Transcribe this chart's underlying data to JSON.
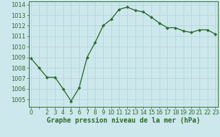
{
  "x": [
    0,
    1,
    2,
    3,
    4,
    5,
    6,
    7,
    8,
    9,
    10,
    11,
    12,
    13,
    14,
    15,
    16,
    17,
    18,
    19,
    20,
    21,
    22,
    23
  ],
  "y": [
    1008.9,
    1008.0,
    1007.1,
    1007.1,
    1006.0,
    1004.85,
    1006.1,
    1009.0,
    1010.4,
    1012.0,
    1012.6,
    1013.55,
    1013.75,
    1013.45,
    1013.3,
    1012.8,
    1012.25,
    1011.8,
    1011.8,
    1011.5,
    1011.35,
    1011.6,
    1011.6,
    1011.2
  ],
  "line_color": "#2d6a2d",
  "marker": "D",
  "marker_size": 2.2,
  "line_width": 1.0,
  "bg_color": "#cce8ec",
  "grid_color": "#b8d8dc",
  "xlabel": "Graphe pression niveau de la mer (hPa)",
  "xlabel_color": "#2d6a2d",
  "xlabel_fontsize": 7.0,
  "tick_color": "#2d6a2d",
  "tick_fontsize": 6.0,
  "ylim": [
    1004.3,
    1014.3
  ],
  "yticks": [
    1005,
    1006,
    1007,
    1008,
    1009,
    1010,
    1011,
    1012,
    1013,
    1014
  ],
  "xlim": [
    -0.3,
    23.3
  ],
  "xtick_labels": [
    "0",
    "",
    "2",
    "3",
    "4",
    "5",
    "6",
    "7",
    "8",
    "9",
    "10",
    "11",
    "12",
    "13",
    "14",
    "15",
    "16",
    "17",
    "18",
    "19",
    "20",
    "21",
    "22",
    "23"
  ]
}
